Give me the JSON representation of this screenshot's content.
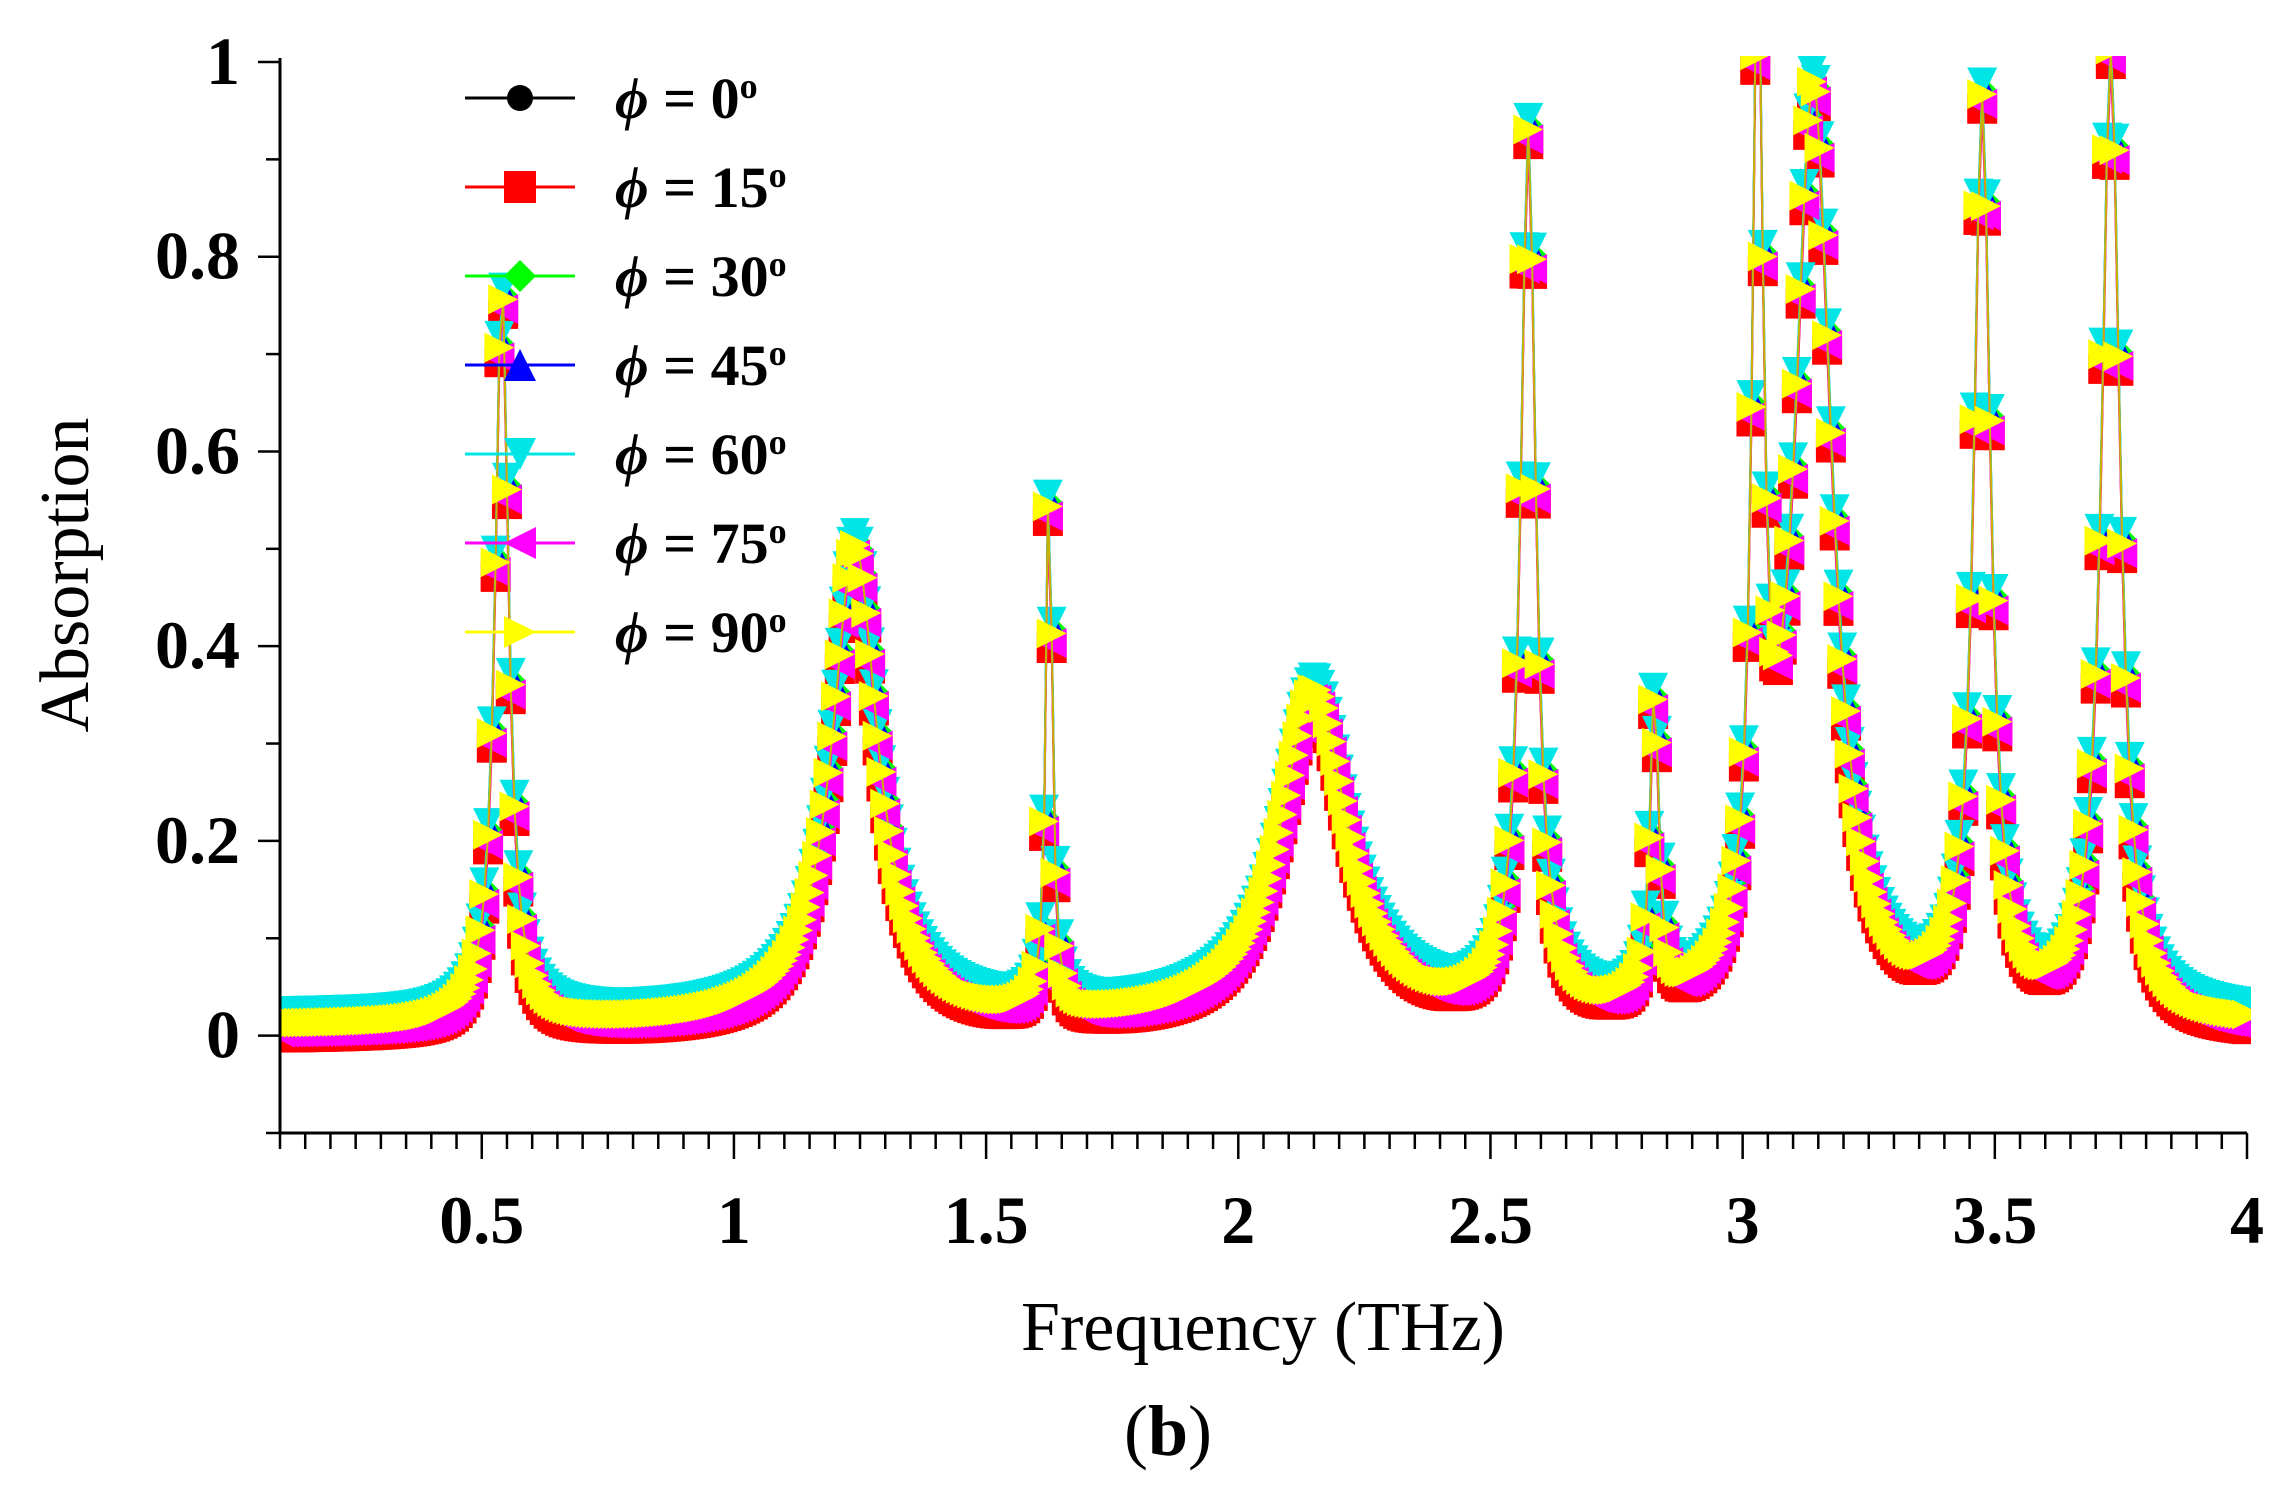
{
  "chart_data": {
    "type": "line",
    "title": "",
    "caption": "b",
    "xlabel": "Frequency (THz)",
    "ylabel": "Absorption",
    "xlim": [
      0.1,
      4.0
    ],
    "ylim": [
      -0.1,
      1.0
    ],
    "xticks": [
      "0.5",
      "1",
      "1.5",
      "2",
      "2.5",
      "3",
      "3.5",
      "4"
    ],
    "xtick_values": [
      0.5,
      1,
      1.5,
      2,
      2.5,
      3,
      3.5,
      4
    ],
    "yticks": [
      "0",
      "0.2",
      "0.4",
      "0.6",
      "0.8",
      "1"
    ],
    "ytick_values": [
      0,
      0.2,
      0.4,
      0.6,
      0.8,
      1
    ],
    "legend_position": "top-left",
    "legend_symbol": "ϕ",
    "peaks": [
      {
        "f": 0.54,
        "a": 0.76,
        "w": 0.016
      },
      {
        "f": 1.24,
        "a": 0.49,
        "w": 0.055
      },
      {
        "f": 1.625,
        "a": 0.58,
        "w": 0.007
      },
      {
        "f": 2.15,
        "a": 0.34,
        "w": 0.08
      },
      {
        "f": 2.575,
        "a": 0.9,
        "w": 0.018
      },
      {
        "f": 2.825,
        "a": 0.32,
        "w": 0.01
      },
      {
        "f": 3.03,
        "a": 0.99,
        "w": 0.013
      },
      {
        "f": 3.14,
        "a": 0.95,
        "w": 0.045
      },
      {
        "f": 3.475,
        "a": 0.93,
        "w": 0.02
      },
      {
        "f": 3.73,
        "a": 0.99,
        "w": 0.022
      }
    ],
    "baseline_offset": 0.01,
    "series": [
      {
        "name": "ϕ = 0º",
        "angle": "0",
        "color": "#000000",
        "marker": "circle",
        "offset": 0.0
      },
      {
        "name": "ϕ = 15º",
        "angle": "15",
        "color": "#ff0000",
        "marker": "square",
        "offset": -0.015
      },
      {
        "name": "ϕ = 30º",
        "angle": "30",
        "color": "#00ff00",
        "marker": "diamond",
        "offset": 0.004
      },
      {
        "name": "ϕ = 45º",
        "angle": "45",
        "color": "#0000ff",
        "marker": "triangle-up",
        "offset": 0.008
      },
      {
        "name": "ϕ = 60º",
        "angle": "60",
        "color": "#00e5e5",
        "marker": "triangle-down",
        "offset": 0.012
      },
      {
        "name": "ϕ = 75º",
        "angle": "75",
        "color": "#ff00ff",
        "marker": "triangle-left",
        "offset": -0.01
      },
      {
        "name": "ϕ = 90º",
        "angle": "90",
        "color": "#ffff00",
        "marker": "triangle-right",
        "offset": 0.0
      }
    ]
  }
}
